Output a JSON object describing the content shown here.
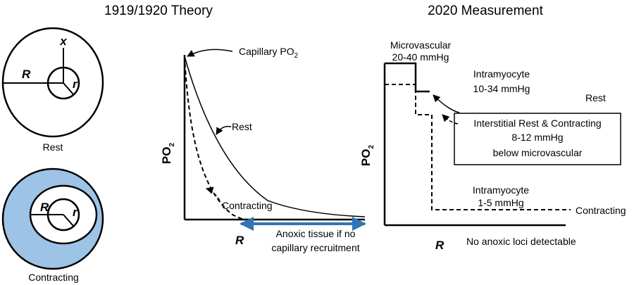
{
  "titles": {
    "left": "1919/1920 Theory",
    "right": "2020 Measurement"
  },
  "cross_sections": {
    "rest": {
      "label": "Rest",
      "R": "R",
      "r": "r",
      "x": "x"
    },
    "contracting": {
      "label": "Contracting",
      "R": "R",
      "r": "r"
    }
  },
  "theory_plot": {
    "ylabel_main": "PO",
    "ylabel_sub": "2",
    "xlabel": "R",
    "capillary_main": "Capillary PO",
    "capillary_sub": "2",
    "rest": "Rest",
    "contracting": "Contracting",
    "anoxic_line1": "Anoxic tissue if no",
    "anoxic_line2": "capillary recruitment"
  },
  "measurement_plot": {
    "ylabel_main": "PO",
    "ylabel_sub": "2",
    "xlabel": "R",
    "microvascular_line1": "Microvascular",
    "microvascular_line2": "20-40 mmHg",
    "intramyocyte_rest_line1": "Intramyocyte",
    "intramyocyte_rest_line2": "10-34 mmHg",
    "rest": "Rest",
    "interstitial_line1": "Interstitial Rest & Contracting",
    "interstitial_line2": "8-12 mmHg",
    "interstitial_line3": "below microvascular",
    "intramyocyte_contract_line1": "Intramyocyte",
    "intramyocyte_contract_line2": "1-5 mmHg",
    "contracting": "Contracting",
    "footer": "No anoxic loci detectable"
  },
  "colors": {
    "contracting_fill": "#9dc3e6",
    "arrow_blue": "#2e75b6"
  }
}
